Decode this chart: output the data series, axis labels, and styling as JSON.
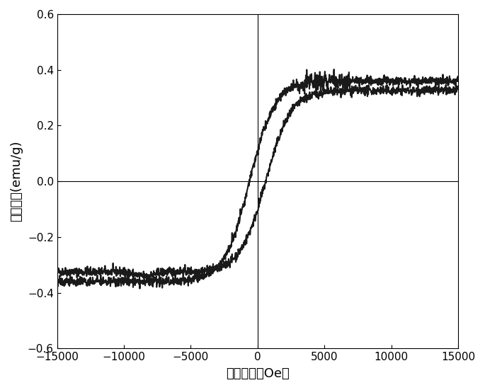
{
  "xlabel": "磁场强度（Oe）",
  "ylabel": "磁化强度(emu/g)",
  "xlim": [
    -15000,
    15000
  ],
  "ylim": [
    -0.6,
    0.6
  ],
  "xticks": [
    -15000,
    -10000,
    -5000,
    0,
    5000,
    10000,
    15000
  ],
  "yticks": [
    -0.6,
    -0.4,
    -0.2,
    0.0,
    0.2,
    0.4,
    0.6
  ],
  "line_color": "#1a1a1a",
  "line_width": 1.5,
  "background_color": "#ffffff",
  "Ms": 0.325,
  "Ms_upper": 0.36,
  "Hc": 600,
  "Mr_upper": 0.175,
  "Mr_lower": 0.03,
  "noise_scale": 0.008
}
